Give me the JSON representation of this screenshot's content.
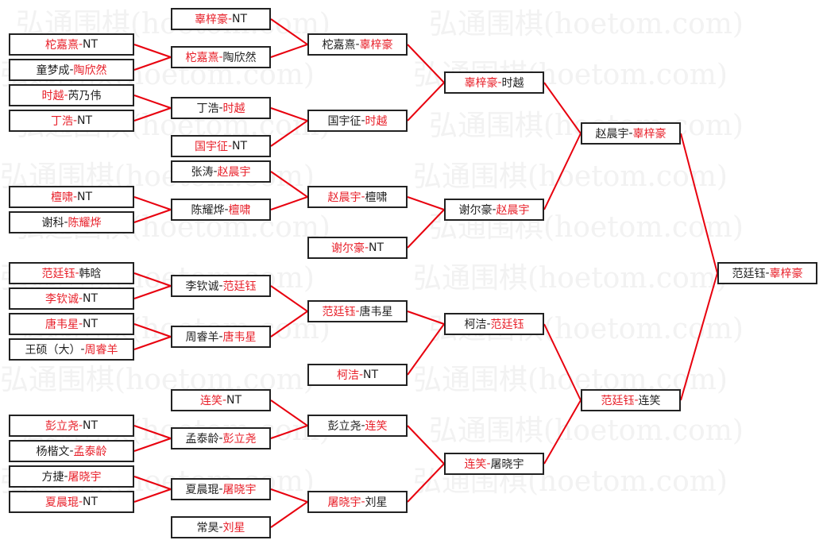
{
  "watermark": "弘通围棋(hoetom.com)",
  "colors": {
    "winner": "#e8202a",
    "text": "#222222",
    "line": "#e8000e",
    "border": "#222222"
  },
  "rounds": [
    [
      {
        "a": "柁嘉熹",
        "b": "NT",
        "red": "a"
      },
      {
        "a": "童梦成",
        "b": "陶欣然",
        "red": "b"
      },
      {
        "a": "时越",
        "b": "芮乃伟",
        "red": "a"
      },
      {
        "a": "丁浩",
        "b": "NT",
        "red": "a"
      },
      {
        "a": "檀啸",
        "b": "NT",
        "red": "a"
      },
      {
        "a": "谢科",
        "b": "陈耀烨",
        "red": "b"
      },
      {
        "a": "范廷钰",
        "b": "韩晗",
        "red": "a"
      },
      {
        "a": "李钦诚",
        "b": "NT",
        "red": "a"
      },
      {
        "a": "唐韦星",
        "b": "NT",
        "red": "a"
      },
      {
        "a": "王硕（大）",
        "b": "周睿羊",
        "red": "b"
      },
      {
        "a": "彭立尧",
        "b": "NT",
        "red": "a"
      },
      {
        "a": "杨楷文",
        "b": "孟泰龄",
        "red": "b"
      },
      {
        "a": "方捷",
        "b": "屠晓宇",
        "red": "b"
      },
      {
        "a": "夏晨琨",
        "b": "NT",
        "red": "a"
      }
    ],
    [
      {
        "a": "辜梓豪",
        "b": "NT",
        "red": "a"
      },
      {
        "a": "柁嘉熹",
        "b": "陶欣然",
        "red": "a"
      },
      {
        "a": "丁浩",
        "b": "时越",
        "red": "b"
      },
      {
        "a": "国宇征",
        "b": "NT",
        "red": "a"
      },
      {
        "a": "张涛",
        "b": "赵晨宇",
        "red": "b"
      },
      {
        "a": "陈耀烨",
        "b": "檀啸",
        "red": "b"
      },
      {
        "a": "李钦诚",
        "b": "范廷钰",
        "red": "b"
      },
      {
        "a": "周睿羊",
        "b": "唐韦星",
        "red": "b"
      },
      {
        "a": "连笑",
        "b": "NT",
        "red": "a"
      },
      {
        "a": "孟泰龄",
        "b": "彭立尧",
        "red": "b"
      },
      {
        "a": "夏晨琨",
        "b": "屠晓宇",
        "red": "b"
      },
      {
        "a": "常昊",
        "b": "刘星",
        "red": "b"
      }
    ],
    [
      {
        "a": "柁嘉熹",
        "b": "辜梓豪",
        "red": "b"
      },
      {
        "a": "国宇征",
        "b": "时越",
        "red": "b"
      },
      {
        "a": "赵晨宇",
        "b": "檀啸",
        "red": "a"
      },
      {
        "a": "谢尔豪",
        "b": "NT",
        "red": "a"
      },
      {
        "a": "范廷钰",
        "b": "唐韦星",
        "red": "a"
      },
      {
        "a": "柯洁",
        "b": "NT",
        "red": "a"
      },
      {
        "a": "彭立尧",
        "b": "连笑",
        "red": "b"
      },
      {
        "a": "屠晓宇",
        "b": "刘星",
        "red": "a"
      }
    ],
    [
      {
        "a": "辜梓豪",
        "b": "时越",
        "red": "a"
      },
      {
        "a": "谢尔豪",
        "b": "赵晨宇",
        "red": "b"
      },
      {
        "a": "柯洁",
        "b": "范廷钰",
        "red": "b"
      },
      {
        "a": "连笑",
        "b": "屠晓宇",
        "red": "a"
      }
    ],
    [
      {
        "a": "赵晨宇",
        "b": "辜梓豪",
        "red": "b"
      },
      {
        "a": "范廷钰",
        "b": "连笑",
        "red": "a"
      }
    ],
    [
      {
        "a": "范廷钰",
        "b": "辜梓豪",
        "red": "b"
      }
    ]
  ]
}
